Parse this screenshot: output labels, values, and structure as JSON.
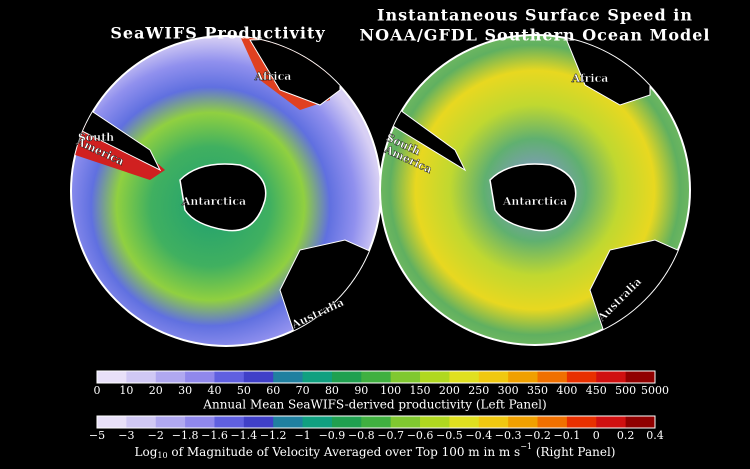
{
  "left_panel": {
    "title": "SeaWIFS Productivity",
    "labels": {
      "africa": "Africa",
      "south": "South",
      "america": "America",
      "antarctica": "Antarctica",
      "australia": "Australia"
    }
  },
  "right_panel": {
    "title_line1": "Instantaneous Surface Speed in",
    "title_line2": "NOAA/GFDL Southern Ocean Model",
    "labels": {
      "africa": "Africa",
      "south": "South",
      "america": "America",
      "antarctica": "Antarctica",
      "australia": "Australia"
    }
  },
  "colorbar_productivity": {
    "ticks": [
      "0",
      "10",
      "20",
      "30",
      "40",
      "50",
      "60",
      "70",
      "80",
      "90",
      "100",
      "150",
      "200",
      "250",
      "300",
      "350",
      "400",
      "450",
      "500",
      "5000"
    ],
    "caption": "Annual Mean SeaWIFS-derived productivity (Left Panel)"
  },
  "colorbar_velocity": {
    "ticks": [
      "−5",
      "−3",
      "−2",
      "−1.8",
      "−1.6",
      "−1.4",
      "−1.2",
      "−1",
      "−0.9",
      "−0.8",
      "−0.7",
      "−0.6",
      "−0.5",
      "−0.4",
      "−0.3",
      "−0.2",
      "−0.1",
      "0",
      "0.2",
      "0.4"
    ],
    "caption": {
      "log": "Log",
      "sub": "10",
      "text": " of Magnitude of Velocity Averaged over Top 100 m in m s",
      "sup": "−1",
      "end": " (Right Panel)"
    }
  }
}
